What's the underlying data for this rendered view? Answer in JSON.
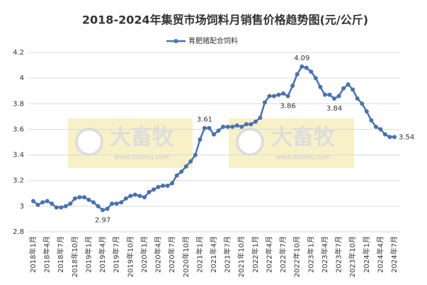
{
  "chart_data": {
    "type": "line",
    "title": "2018-2024年集贸市场饲料月销售价格趋势图(元/公斤)",
    "watermarks": [
      {
        "brand": "大畜牧",
        "site": "www.dxumu.com"
      },
      {
        "brand": "大畜牧",
        "site": "www.dxumu.com"
      }
    ],
    "categories": [
      "2018年1月",
      null,
      null,
      "2018年4月",
      null,
      null,
      "2018年7月",
      null,
      null,
      "2018年10月",
      null,
      null,
      "2019年1月",
      null,
      null,
      "2019年4月",
      null,
      null,
      "2019年7月",
      null,
      null,
      "2019年10月",
      null,
      null,
      "2020年1月",
      null,
      null,
      "2020年4月",
      null,
      null,
      "2020年7月",
      null,
      null,
      "2020年10月",
      null,
      null,
      "2021年1月",
      null,
      null,
      "2021年4月",
      null,
      null,
      "2021年7月",
      null,
      null,
      "2021年10月",
      null,
      null,
      "2022年1月",
      null,
      null,
      "2022年4月",
      null,
      null,
      "2022年7月",
      null,
      null,
      "2022年10月",
      null,
      null,
      "2023年1月",
      null,
      null,
      "2023年4月",
      null,
      null,
      "2023年7月",
      null,
      null,
      "2023年10月",
      null,
      null,
      "2024年1月",
      null,
      null,
      "2024年4月",
      null,
      null,
      "2024年7月"
    ],
    "series": [
      {
        "name": "育肥猪配合饲料",
        "color": "#4a72b0",
        "values": [
          3.04,
          3.01,
          3.03,
          3.04,
          3.02,
          2.99,
          2.99,
          3.0,
          3.02,
          3.06,
          3.07,
          3.07,
          3.05,
          3.03,
          3.0,
          2.97,
          2.98,
          3.02,
          3.02,
          3.03,
          3.06,
          3.08,
          3.09,
          3.08,
          3.07,
          3.11,
          3.13,
          3.15,
          3.16,
          3.16,
          3.18,
          3.24,
          3.27,
          3.31,
          3.35,
          3.4,
          3.52,
          3.61,
          3.61,
          3.56,
          3.59,
          3.62,
          3.62,
          3.62,
          3.63,
          3.62,
          3.64,
          3.64,
          3.66,
          3.69,
          3.81,
          3.86,
          3.86,
          3.87,
          3.88,
          3.86,
          3.94,
          4.03,
          4.09,
          4.08,
          4.05,
          4.0,
          3.93,
          3.87,
          3.87,
          3.84,
          3.86,
          3.92,
          3.95,
          3.91,
          3.84,
          3.8,
          3.74,
          3.67,
          3.62,
          3.6,
          3.56,
          3.54,
          3.54
        ],
        "value_labels": [
          null,
          null,
          null,
          null,
          null,
          null,
          null,
          null,
          null,
          null,
          null,
          null,
          null,
          null,
          null,
          "2.97",
          null,
          null,
          null,
          null,
          null,
          null,
          null,
          null,
          null,
          null,
          null,
          null,
          null,
          null,
          null,
          null,
          null,
          null,
          null,
          null,
          null,
          "3.61",
          null,
          null,
          null,
          null,
          null,
          null,
          null,
          null,
          null,
          null,
          null,
          null,
          null,
          null,
          null,
          null,
          null,
          "3.86",
          null,
          null,
          "4.09",
          null,
          null,
          null,
          null,
          null,
          null,
          "3.84",
          null,
          null,
          null,
          null,
          null,
          null,
          null,
          null,
          null,
          null,
          null,
          null,
          "3.54"
        ]
      }
    ],
    "ylim": [
      2.8,
      4.2
    ],
    "yticks": [
      2.8,
      3,
      3.2,
      3.4,
      3.6,
      3.8,
      4,
      4.2
    ],
    "grid": true,
    "legend": "top"
  }
}
